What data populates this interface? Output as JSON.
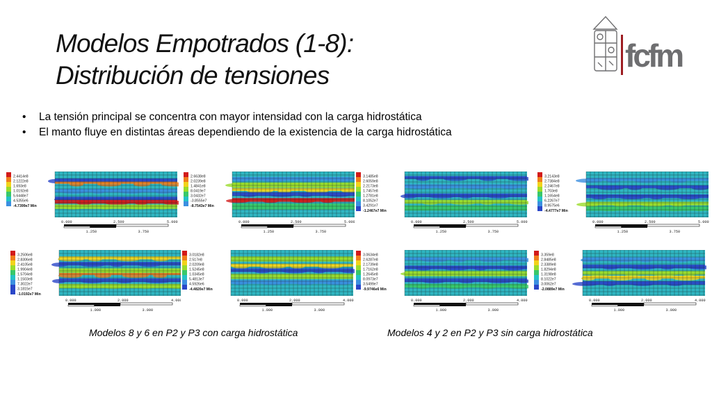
{
  "slide": {
    "title_line1": "Modelos Empotrados (1-8):",
    "title_line2": "Distribución de tensiones",
    "logo_text": "fcfm",
    "bullets": [
      "La tensión principal se concentra con mayor intensidad con la carga hidrostática",
      "El manto fluye en distintas áreas dependiendo de la existencia de la carga hidrostática"
    ],
    "caption_left": "Modelos 8 y 6 en P2 y P3 con carga hidrostática",
    "caption_right": "Modelos 4 y 2 en P2 y P3 sin carga hidrostática"
  },
  "panels": [
    {
      "legend": [
        "2.4414e8",
        "2.1222e8",
        "1.693e8",
        "1.0192e8",
        "5.6448e7",
        "4.5355e6"
      ],
      "min": "-4.7399e7 Min",
      "scale": [
        "0.000",
        "2.500",
        "5.000 (m)"
      ],
      "scale2": [
        "1.250",
        "3.750"
      ]
    },
    {
      "legend": [
        "2.6638e8",
        "2.0239e8",
        "1.4841e8",
        "8.0419e7",
        "3.0432e7",
        "-3.8555e7"
      ],
      "min": "-8.7543e7 Min",
      "scale": [
        "0.000",
        "2.500",
        "5.000 (m)"
      ],
      "scale2": [
        "1.250",
        "3.750"
      ]
    },
    {
      "legend": [
        "3.1485e8",
        "2.6059e8",
        "2.2173e8",
        "1.7457e8",
        "1.2781e8",
        "8.1052e7",
        "3.4291e7"
      ],
      "min": "-1.2467e7 Min",
      "scale": [
        "0.000",
        "2.500",
        "5.000 (m)"
      ],
      "scale2": [
        "1.250",
        "3.750"
      ]
    },
    {
      "legend": [
        "3.2143e8",
        "2.7384e8",
        "2.2467e8",
        "1.703e8",
        "1.1654e8",
        "6.2267e7",
        "8.9575e6"
      ],
      "min": "-4.4777e7 Min",
      "scale": [
        "0.000",
        "2.500",
        "5.000 (m)"
      ],
      "scale2": [
        "1.250",
        "3.750"
      ]
    },
    {
      "legend": [
        "3.2506e8",
        "2.8306e8",
        "2.4105e8",
        "1.9904e8",
        "1.5704e8",
        "1.1503e8",
        "7.3022e7",
        "3.1815e7"
      ],
      "min": "-1.0192e7 Min",
      "scale": [
        "0.000",
        "2.000",
        "4.000 (m)"
      ],
      "scale2": [
        "1.000",
        "3.000"
      ]
    },
    {
      "legend": [
        "3.0182e8",
        "2.517e8",
        "2.0209e8",
        "1.5245e8",
        "1.0345e8",
        "5.4813e7",
        "4.5926e6"
      ],
      "min": "-4.4820e7 Min",
      "scale": [
        "0.000",
        "2.000",
        "4.000 (m)"
      ],
      "scale2": [
        "1.000",
        "3.000"
      ]
    },
    {
      "legend": [
        "3.0634e8",
        "2.6287e8",
        "2.1739e8",
        "1.7162e8",
        "1.2645e8",
        "8.0973e7",
        "3.5499e7"
      ],
      "min": "-9.9746e6 Min",
      "scale": [
        "0.000",
        "2.000",
        "4.000 (m)"
      ],
      "scale2": [
        "1.000",
        "3.000"
      ]
    },
    {
      "legend": [
        "3.359e8",
        "2.8485e8",
        "2.3389e8",
        "1.8294e8",
        "1.3198e8",
        "8.1022e7",
        "3.0062e7"
      ],
      "min": "-2.0889e7 Min",
      "scale": [
        "0.000",
        "2.000",
        "4.000 (m)"
      ],
      "scale2": [
        "1.000",
        "3.000"
      ]
    }
  ],
  "colors": {
    "legend_scale": [
      "#d21a1a",
      "#f07d1c",
      "#f2d31b",
      "#9bdc2a",
      "#38c86a",
      "#25c2c6",
      "#3b8fe0",
      "#2a46c8"
    ],
    "field_base": "#2fb6c2",
    "mesh_line": "#1a2a2a",
    "logo_red": "#9d1d22",
    "logo_gray": "#6e6e70"
  }
}
